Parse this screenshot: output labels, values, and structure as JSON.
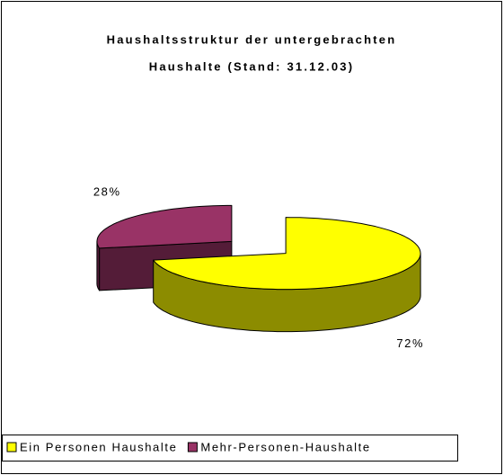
{
  "chart_data": {
    "type": "pie",
    "title": [
      "Haushaltsstruktur der untergebrachten",
      "Haushalte (Stand: 31.12.03)"
    ],
    "categories": [
      "Ein Personen Haushalte",
      "Mehr-Personen-Haushalte"
    ],
    "values": [
      72,
      28
    ],
    "value_labels": [
      "72%",
      "28%"
    ],
    "colors": [
      "#ffff00",
      "#993366"
    ],
    "legend": "bottom"
  }
}
